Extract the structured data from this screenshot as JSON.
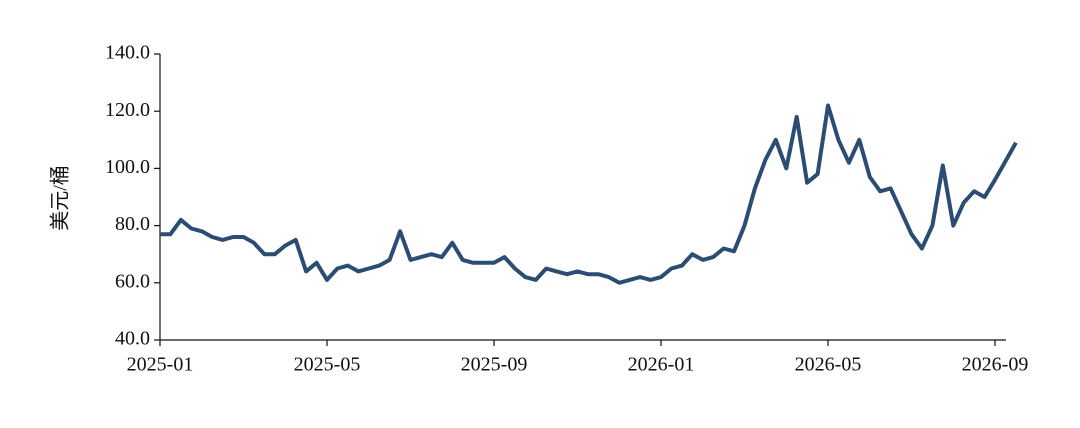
{
  "chart_data": {
    "type": "line",
    "y_label": "美元/桶",
    "color": "#2b4c73",
    "x": [
      "2025-01",
      "2025-01",
      "2025-01",
      "2025-01",
      "2025-02",
      "2025-02",
      "2025-02",
      "2025-02",
      "2025-03",
      "2025-03",
      "2025-03",
      "2025-03",
      "2025-04",
      "2025-04",
      "2025-04",
      "2025-04",
      "2025-05",
      "2025-05",
      "2025-05",
      "2025-05",
      "2025-06",
      "2025-06",
      "2025-06",
      "2025-06",
      "2025-07",
      "2025-07",
      "2025-07",
      "2025-07",
      "2025-08",
      "2025-08",
      "2025-08",
      "2025-08",
      "2025-09",
      "2025-09",
      "2025-09",
      "2025-09",
      "2025-10",
      "2025-10",
      "2025-10",
      "2025-10",
      "2025-11",
      "2025-11",
      "2025-11",
      "2025-11",
      "2025-12",
      "2025-12",
      "2025-12",
      "2025-12",
      "2026-01",
      "2026-01",
      "2026-01",
      "2026-01",
      "2026-02",
      "2026-02",
      "2026-02",
      "2026-02",
      "2026-03",
      "2026-03",
      "2026-03",
      "2026-03",
      "2026-04",
      "2026-04",
      "2026-04",
      "2026-04",
      "2026-05",
      "2026-05",
      "2026-05",
      "2026-05",
      "2026-06",
      "2026-06",
      "2026-06",
      "2026-06",
      "2026-07",
      "2026-07",
      "2026-07",
      "2026-07",
      "2026-08",
      "2026-08",
      "2026-08",
      "2026-08",
      "2026-09",
      "2026-09"
    ],
    "values": [
      77,
      77,
      82,
      79,
      78,
      76,
      75,
      76,
      76,
      74,
      70,
      70,
      73,
      75,
      64,
      67,
      61,
      65,
      66,
      64,
      65,
      66,
      68,
      78,
      68,
      69,
      70,
      69,
      74,
      68,
      67,
      67,
      67,
      69,
      65,
      62,
      61,
      65,
      64,
      63,
      64,
      63,
      63,
      62,
      60,
      61,
      62,
      61,
      62,
      65,
      66,
      70,
      68,
      69,
      72,
      71,
      80,
      93,
      103,
      110,
      100,
      118,
      95,
      98,
      122,
      110,
      102,
      110,
      97,
      92,
      93,
      85,
      77,
      72,
      80,
      101,
      80,
      88,
      92,
      90,
      96,
      109
    ],
    "xlim": [
      "2025-01",
      "2026-09"
    ],
    "xticks": [
      "2025-01",
      "2025-05",
      "2025-09",
      "2026-01",
      "2026-05",
      "2026-09"
    ],
    "ylim": [
      40,
      140
    ],
    "yticks": [
      {
        "value": 40,
        "label": "40.0"
      },
      {
        "value": 60,
        "label": "60.0"
      },
      {
        "value": 80,
        "label": "80.0"
      },
      {
        "value": 100,
        "label": "100.0"
      },
      {
        "value": 120,
        "label": "120.0"
      },
      {
        "value": 140,
        "label": "140.0"
      }
    ]
  }
}
